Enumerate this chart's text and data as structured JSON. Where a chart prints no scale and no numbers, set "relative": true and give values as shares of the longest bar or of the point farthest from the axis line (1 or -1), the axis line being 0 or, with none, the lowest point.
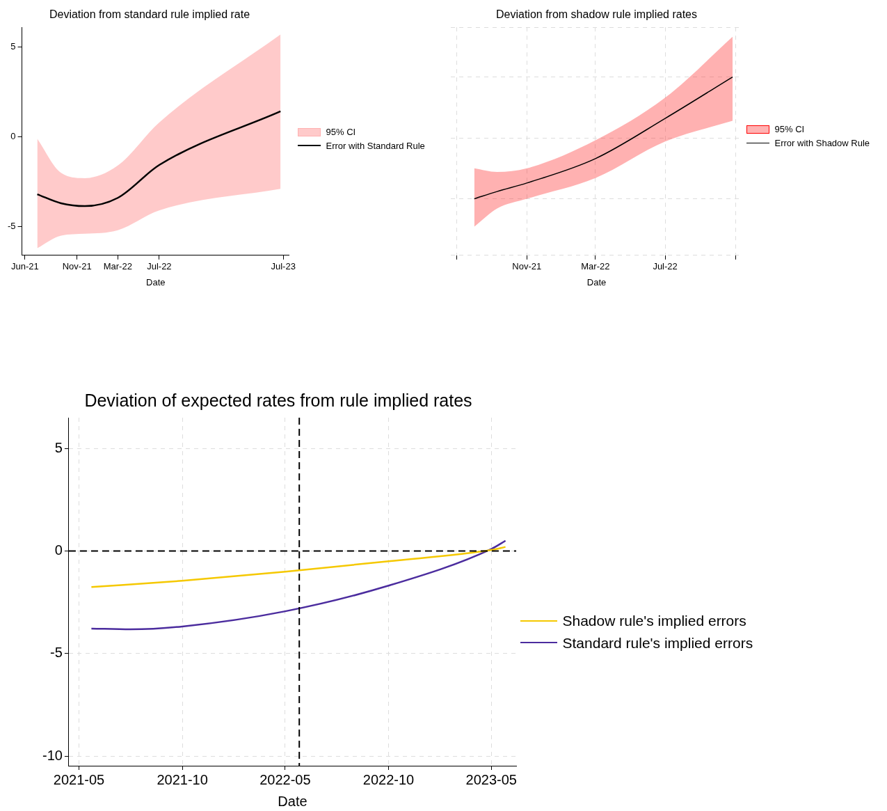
{
  "chart_data": [
    {
      "type": "line",
      "title": "Deviation from standard rule implied rate",
      "xlabel": "Date",
      "xlim": [
        "2021-05-23",
        "2023-07-19"
      ],
      "xticks": [
        {
          "value": "2021-06-01",
          "label": "Jun-21"
        },
        {
          "value": "2021-11-01",
          "label": "Nov-21"
        },
        {
          "value": "2022-03-01",
          "label": "Mar-22"
        },
        {
          "value": "2022-07-01",
          "label": "Jul-22"
        },
        {
          "value": "2023-07-01",
          "label": "Jul-23"
        }
      ],
      "ylim": [
        -6.6,
        6.1
      ],
      "yticks": [
        -5,
        0,
        5
      ],
      "grid": false,
      "legend": "right",
      "annotations": [
        "95% CI"
      ],
      "series": [
        {
          "name": "Error with Standard Rule",
          "type": "line",
          "color": "#000000",
          "x": [
            "2021-07-07",
            "2021-09-15",
            "2021-11-24",
            "2022-03-01",
            "2022-07-01",
            "2023-06-23"
          ],
          "values": [
            -3.2,
            -3.7,
            -3.86,
            -3.4,
            -1.57,
            1.42
          ],
          "lower": [
            -6.2,
            -5.5,
            -5.4,
            -5.2,
            -4.1,
            -2.9
          ],
          "upper": [
            -0.1,
            -2.0,
            -2.3,
            -1.6,
            0.8,
            5.7
          ]
        }
      ]
    },
    {
      "type": "line",
      "title": "Deviation from shadow rule implied rates",
      "xlabel": "Date",
      "relative": true,
      "xlim": [
        "2021-06-21",
        "2022-11-13"
      ],
      "xticks": [
        {
          "value": "2021-07-01",
          "label": null
        },
        {
          "value": "2021-11-01",
          "label": "Nov-21"
        },
        {
          "value": "2022-03-01",
          "label": "Mar-22"
        },
        {
          "value": "2022-07-01",
          "label": "Jul-22"
        },
        {
          "value": "2022-11-01",
          "label": null
        }
      ],
      "grid": true,
      "legend": "right",
      "annotations": [
        "95% CI"
      ],
      "series": [
        {
          "name": "Error with Shadow Rule",
          "type": "line",
          "color": "#000000",
          "x": [
            "2021-08-01",
            "2021-09-10",
            "2021-11-01",
            "2022-03-01",
            "2022-07-01",
            "2022-10-27"
          ],
          "values": [
            0,
            0.06,
            0.13,
            0.33,
            0.66,
            1
          ],
          "lower": [
            -0.23,
            -0.08,
            0,
            0.17,
            0.47,
            0.64
          ],
          "upper": [
            0.25,
            0.22,
            0.25,
            0.48,
            0.83,
            1.33
          ]
        }
      ]
    },
    {
      "type": "line",
      "title": "Deviation of expected rates from rule implied rates",
      "xlabel": "Date",
      "xlim": [
        "2021-04-13",
        "2023-06-14"
      ],
      "xticks": [
        {
          "value": "2021-05-01",
          "label": "2021-05"
        },
        {
          "value": "2021-10-31",
          "label": "2021-10"
        },
        {
          "value": "2022-05-01",
          "label": "2022-05"
        },
        {
          "value": "2022-10-31",
          "label": "2022-10"
        },
        {
          "value": "2023-05-01",
          "label": "2023-05"
        }
      ],
      "ylim": [
        -10.47,
        6.5
      ],
      "yticks": [
        -10,
        -5,
        0,
        5
      ],
      "grid": true,
      "legend": "right",
      "ref_lines": [
        {
          "axis": "x",
          "value": "2022-05-26",
          "line_style": "dashed",
          "color": "#000000"
        },
        {
          "axis": "y",
          "value": 0,
          "line_style": "dashed",
          "color": "#000000"
        }
      ],
      "series": [
        {
          "name": "Shadow rule's implied errors",
          "type": "line",
          "color": "#f5c800",
          "x": [
            "2021-05-23",
            "2021-10-31",
            "2022-05-01",
            "2022-10-31",
            "2023-05-01",
            "2023-05-26"
          ],
          "values": [
            -1.76,
            -1.45,
            -1.01,
            -0.5,
            0.05,
            0.2
          ]
        },
        {
          "name": "Standard rule's implied errors",
          "type": "line",
          "color": "#4b2c9e",
          "x": [
            "2021-05-23",
            "2021-07-31",
            "2021-10-31",
            "2022-05-01",
            "2022-10-31",
            "2023-05-01",
            "2023-05-26"
          ],
          "values": [
            -3.78,
            -3.82,
            -3.68,
            -2.94,
            -1.69,
            0.1,
            0.5
          ]
        }
      ]
    }
  ]
}
